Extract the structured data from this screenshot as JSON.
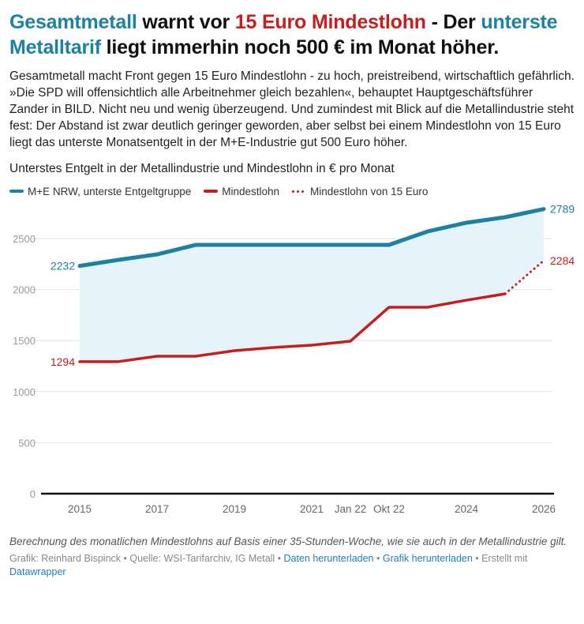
{
  "headline": {
    "parts": [
      {
        "text": "Gesamtmetall",
        "style": "blue"
      },
      {
        "text": " warnt vor ",
        "style": "plain"
      },
      {
        "text": "15 Euro Mindestlohn",
        "style": "red"
      },
      {
        "text": " - Der ",
        "style": "plain"
      },
      {
        "text": "unterste Metalltarif",
        "style": "blue"
      },
      {
        "text": " liegt immerhin noch 500 € im Monat höher.",
        "style": "plain"
      }
    ]
  },
  "intro": "Gesamtmetall macht Front gegen 15 Euro Mindestlohn - zu hoch, preistreibend, wirtschaftlich gefährlich. »Die SPD will offensichtlich alle Arbeitnehmer gleich bezahlen«, behauptet Hauptgeschäftsführer Zander in BILD. Nicht neu und wenig überzeugend. Und zumindest mit Blick auf die Metallindustrie steht fest: Der Abstand ist zwar deutlich geringer geworden, aber selbst bei einem Mindestlohn von 15 Euro liegt das unterste Monatsentgelt in der M+E-Industrie gut 500 Euro höher.",
  "colors": {
    "blue": "#1d81a2",
    "red": "#c71e1d",
    "fill": "#e6f3fa",
    "grid": "#e2e2e2",
    "axis": "#111111",
    "tick_text": "#999999",
    "x_tick_text": "#666666",
    "link": "#1d81bd"
  },
  "chart_data": {
    "type": "line",
    "title": "Unterstes Entgelt in der Metallindustrie und Mindestlohn in € pro Monat",
    "xlabel": "",
    "ylabel": "",
    "ylim": [
      0,
      2800
    ],
    "yticks": [
      0,
      500,
      1000,
      1500,
      2000,
      2500
    ],
    "grid": true,
    "legend_position": "top-left",
    "x": [
      "2015",
      "2016",
      "2017",
      "2018",
      "2019",
      "2020",
      "2021",
      "Jan 22",
      "Okt 22",
      "2023",
      "2024",
      "2025",
      "2026"
    ],
    "xtick_labels": [
      {
        "index": 0,
        "label": "2015"
      },
      {
        "index": 2,
        "label": "2017"
      },
      {
        "index": 4,
        "label": "2019"
      },
      {
        "index": 6,
        "label": "2021"
      },
      {
        "index": 7,
        "label": "Jan 22"
      },
      {
        "index": 8,
        "label": "Okt 22"
      },
      {
        "index": 10,
        "label": "2024"
      },
      {
        "index": 12,
        "label": "2026"
      }
    ],
    "series": [
      {
        "name": "M+E NRW, unterste Entgeltgruppe",
        "color": "#1d81a2",
        "style": "solid",
        "values": [
          2232,
          2291,
          2345,
          2438,
          2438,
          2438,
          2438,
          2438,
          2438,
          2570,
          2655,
          2709,
          2789
        ],
        "labels": [
          {
            "index": 0,
            "text": "2232",
            "side": "left"
          },
          {
            "index": 12,
            "text": "2789",
            "side": "right"
          }
        ]
      },
      {
        "name": "Mindestlohn",
        "color": "#c71e1d",
        "style": "solid",
        "values": [
          1294,
          1294,
          1347,
          1347,
          1401,
          1432,
          1455,
          1494,
          1827,
          1827,
          1896,
          1958,
          null
        ],
        "labels": [
          {
            "index": 0,
            "text": "1294",
            "side": "left"
          }
        ]
      },
      {
        "name": "Mindestlohn von 15 Euro",
        "color": "#c71e1d",
        "style": "dotted",
        "values": [
          null,
          null,
          null,
          null,
          null,
          null,
          null,
          null,
          null,
          null,
          null,
          1958,
          2284
        ],
        "labels": [
          {
            "index": 12,
            "text": "2284",
            "side": "right"
          }
        ]
      }
    ],
    "area_between": [
      "M+E NRW, unterste Entgeltgruppe",
      "Mindestlohn"
    ]
  },
  "notes": "Berechnung des monatlichen Mindestlohns auf Basis einer 35-Stunden-Woche, wie sie auch in der Metallindustrie gilt.",
  "footer": {
    "credit": "Grafik: Reinhard Bispinck",
    "sep": " • ",
    "source": "Quelle: WSI-Tarifarchiv, IG Metall",
    "link_data": "Daten herunterladen",
    "link_graphic": "Grafik herunterladen",
    "created_with": "Erstellt mit",
    "link_datawrapper": "Datawrapper"
  }
}
